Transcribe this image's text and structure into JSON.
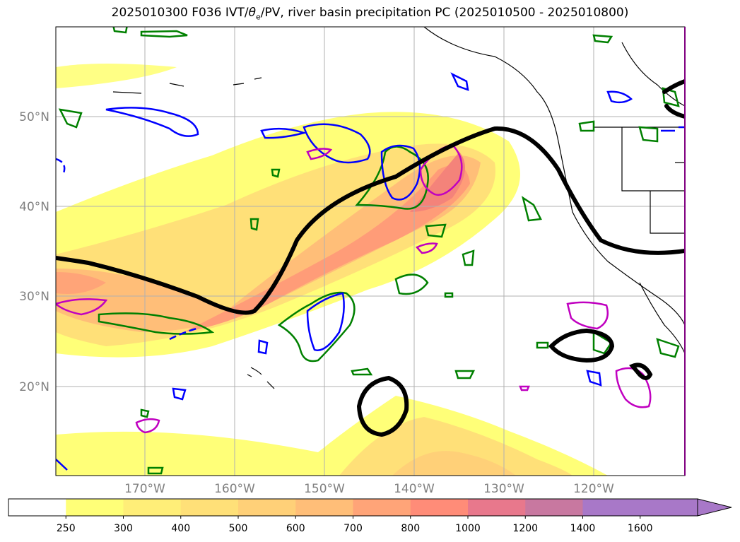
{
  "title_pre": "2025010300 F036 IVT/",
  "title_theta": "θ",
  "title_sub": "e",
  "title_post": "/PV, river basin precipitation PC (2025010500 - 2025010800)",
  "lat_labels": [
    "50°N",
    "40°N",
    "30°N",
    "20°N"
  ],
  "lon_labels": [
    "170°W",
    "160°W",
    "150°W",
    "140°W",
    "130°W",
    "120°W"
  ],
  "colorbar": {
    "ticks": [
      "250",
      "300",
      "400",
      "500",
      "600",
      "700",
      "800",
      "1000",
      "1200",
      "1400",
      "1600"
    ],
    "colors": [
      "#ffffff",
      "#ffff78",
      "#ffee78",
      "#ffe078",
      "#ffd078",
      "#ffbe78",
      "#ffa478",
      "#ff8c78",
      "#e8788c",
      "#c878a0",
      "#a878c8"
    ]
  },
  "contour_colors": {
    "ivt_jet": "#000000",
    "pv_blue": "#0000ff",
    "precip_green": "#008000",
    "magenta": "#c000c0"
  }
}
